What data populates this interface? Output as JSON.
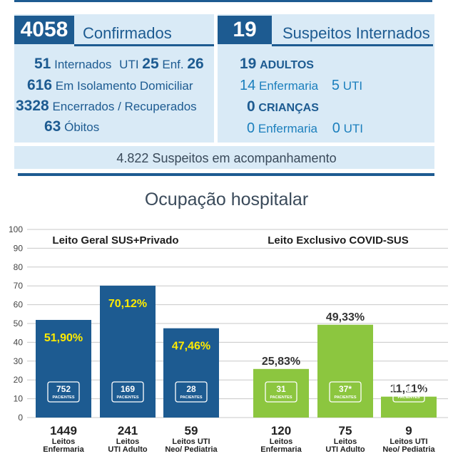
{
  "confirmed": {
    "number": "4058",
    "label": "Confirmados",
    "internados_num": "51",
    "internados_label": "Internados",
    "uti_label": "UTI",
    "uti_num": "25",
    "enf_label": "Enf.",
    "enf_num": "26",
    "isolamento_num": "616",
    "isolamento_label": "Em Isolamento Domiciliar",
    "encerrados_num": "3328",
    "encerrados_label": "Encerrados / Recuperados",
    "obitos_num": "63",
    "obitos_label": "Óbitos"
  },
  "suspects": {
    "number": "19",
    "label": "Suspeitos Internados",
    "adultos_num": "19",
    "adultos_label": "ADULTOS",
    "adult_enf_num": "14",
    "adult_enf_label": "Enfermaria",
    "adult_uti_num": "5",
    "adult_uti_label": "UTI",
    "criancas_num": "0",
    "criancas_label": "CRIANÇAS",
    "child_enf_num": "0",
    "child_enf_label": "Enfermaria",
    "child_uti_num": "0",
    "child_uti_label": "UTI"
  },
  "monitoring": "4.822 Suspeitos em acompanhamento",
  "colors": {
    "blue": "#1d5b91",
    "green": "#8cc63f",
    "yellow": "#ffeb00",
    "light_panel": "#d9eaf6"
  },
  "chart_data": {
    "type": "bar",
    "title": "Ocupação hospitalar",
    "ylim": [
      0,
      100
    ],
    "yticks": [
      "0",
      "10",
      "20",
      "30",
      "40",
      "50",
      "60",
      "70",
      "80",
      "90",
      "100"
    ],
    "patients_label": "PACIENTES",
    "groups": [
      {
        "title": "Leito Geral SUS+Privado",
        "color": "#1d5b91",
        "bars": [
          {
            "value": 51.9,
            "label": "51,90%",
            "patients": "752",
            "beds": "1449",
            "category": [
              "Leitos",
              "Enfermaria"
            ]
          },
          {
            "value": 70.12,
            "label": "70,12%",
            "patients": "169",
            "beds": "241",
            "category": [
              "Leitos",
              "UTI Adulto"
            ]
          },
          {
            "value": 47.46,
            "label": "47,46%",
            "patients": "28",
            "beds": "59",
            "category": [
              "Leitos UTI",
              "Neo/ Pediatria"
            ]
          }
        ]
      },
      {
        "title": "Leito Exclusivo COVID-SUS",
        "color": "#8cc63f",
        "bars": [
          {
            "value": 25.83,
            "label": "25,83%",
            "patients": "31",
            "beds": "120",
            "category": [
              "Leitos",
              "Enfermaria"
            ]
          },
          {
            "value": 49.33,
            "label": "49,33%",
            "patients": "37*",
            "beds": "75",
            "category": [
              "Leitos",
              "UTI Adulto"
            ]
          },
          {
            "value": 11.11,
            "label": "11,11%",
            "patients": "1",
            "beds": "9",
            "category": [
              "Leitos UTI",
              "Neo/ Pediatria"
            ]
          }
        ]
      }
    ]
  }
}
